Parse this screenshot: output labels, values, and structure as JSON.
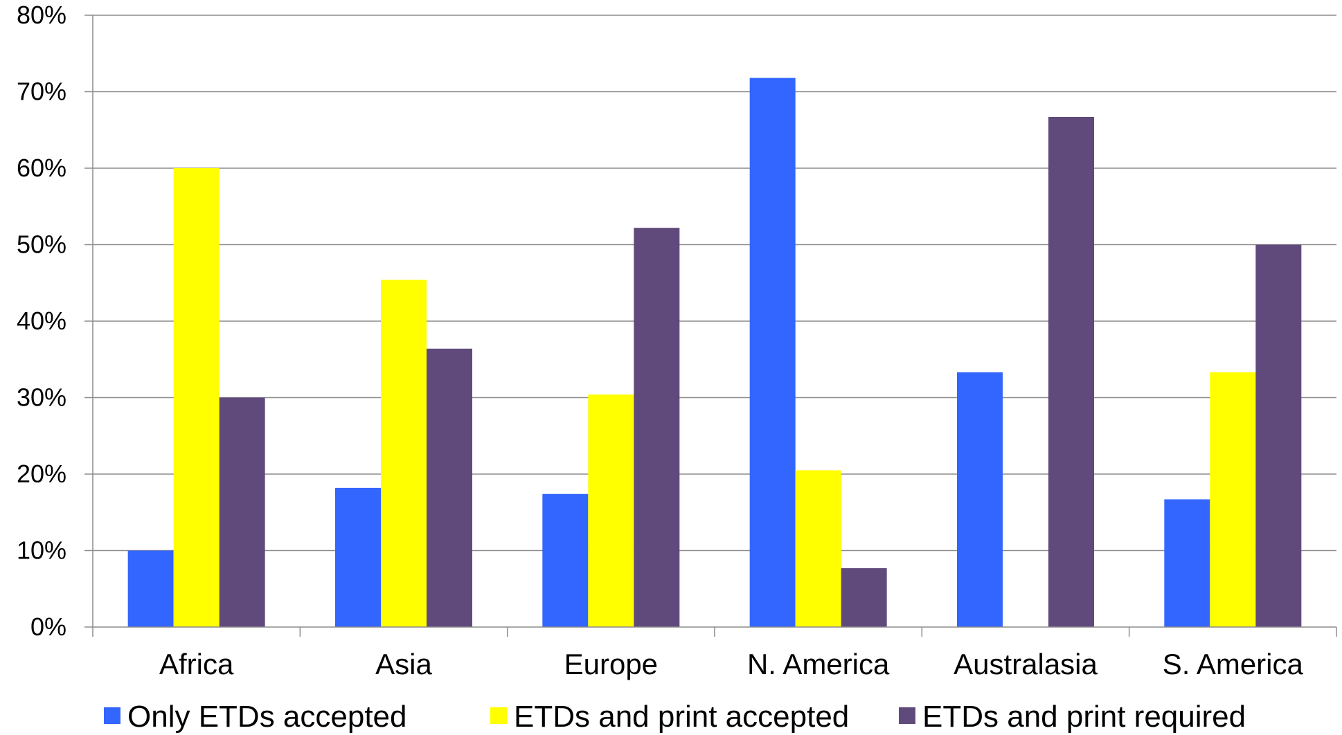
{
  "chart_data": {
    "type": "bar",
    "categories": [
      "Africa",
      "Asia",
      "Europe",
      "N. America",
      "Australasia",
      "S. America"
    ],
    "series": [
      {
        "name": "Only ETDs accepted",
        "color": "#3366FF",
        "values": [
          10,
          18.2,
          17.4,
          71.8,
          33.3,
          16.7
        ]
      },
      {
        "name": "ETDs and print accepted",
        "color": "#FFFF00",
        "values": [
          60,
          45.4,
          30.4,
          20.5,
          0,
          33.3
        ]
      },
      {
        "name": "ETDs and print required",
        "color": "#604A7B",
        "values": [
          30,
          36.4,
          52.2,
          7.7,
          66.7,
          50
        ]
      }
    ],
    "y_tick_labels": [
      "0%",
      "10%",
      "20%",
      "30%",
      "40%",
      "50%",
      "60%",
      "70%",
      "80%"
    ],
    "ylim": [
      0,
      80
    ],
    "grid": true,
    "legend_position": "bottom"
  }
}
